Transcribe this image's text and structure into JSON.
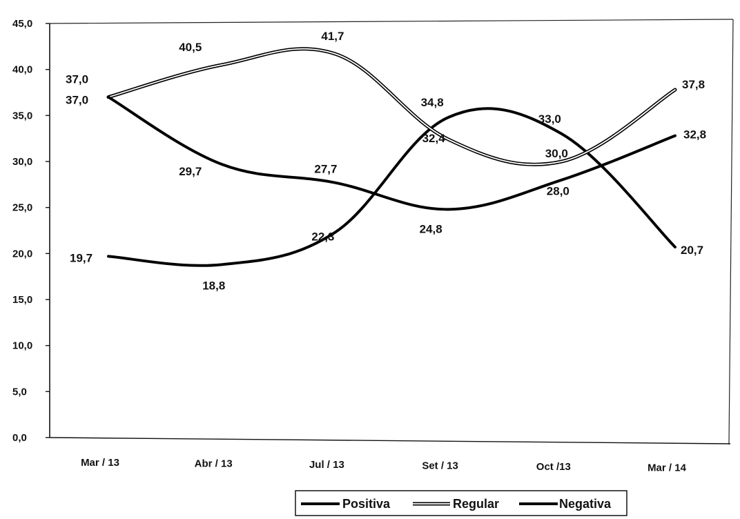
{
  "chart_data": {
    "type": "line",
    "title": "",
    "xlabel": "",
    "ylabel": "",
    "categories": [
      "Mar / 13",
      "Abr / 13",
      "Jul / 13",
      "Set / 13",
      "Oct /13",
      "Mar / 14"
    ],
    "ylim": [
      0,
      45
    ],
    "yticks": [
      "0,0",
      "5,0",
      "10,0",
      "15,0",
      "20,0",
      "25,0",
      "30,0",
      "35,0",
      "40,0",
      "45,0"
    ],
    "grid": false,
    "legend_position": "bottom",
    "series": [
      {
        "name": "Positiva",
        "values": [
          19.7,
          18.8,
          22.3,
          34.8,
          33.0,
          20.7
        ],
        "labels": [
          "19,7",
          "18,8",
          "22,3",
          "34,8",
          "33,0",
          "20,7"
        ],
        "style": "solid",
        "color": "#000000"
      },
      {
        "name": "Regular",
        "values": [
          37.0,
          40.5,
          41.7,
          32.4,
          30.0,
          37.8
        ],
        "labels": [
          "37,0",
          "40,5",
          "41,7",
          "32,4",
          "30,0",
          "37,8"
        ],
        "style": "double",
        "color": "#000000"
      },
      {
        "name": "Negativa",
        "values": [
          37.0,
          29.7,
          27.7,
          24.8,
          28.0,
          32.8
        ],
        "labels": [
          "37,0",
          "29,7",
          "27,7",
          "24,8",
          "28,0",
          "32,8"
        ],
        "style": "solid",
        "color": "#000000"
      }
    ]
  }
}
